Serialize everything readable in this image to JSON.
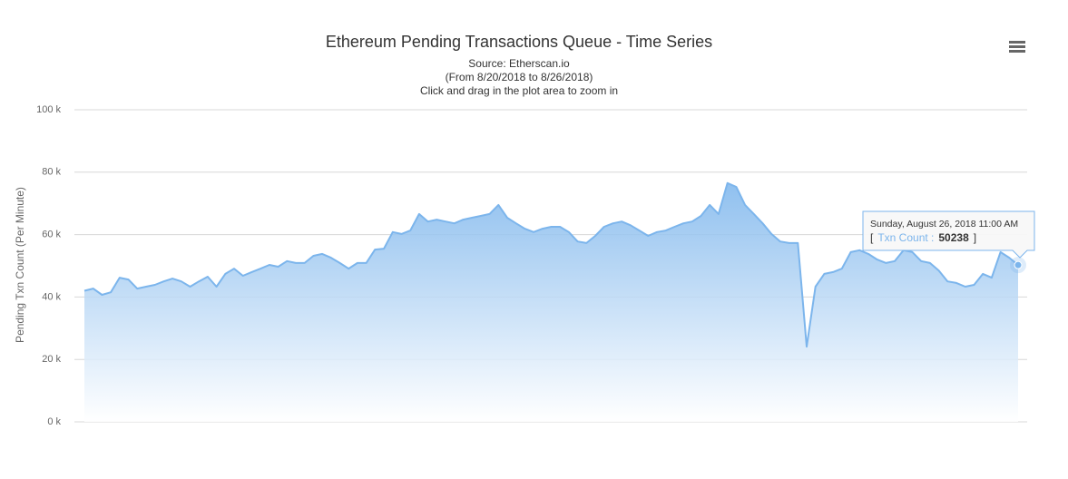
{
  "chart_data": {
    "type": "area",
    "title": "Ethereum Pending Transactions Queue - Time Series",
    "subtitle": [
      "Source: Etherscan.io",
      "(From 8/20/2018 to 8/26/2018)",
      "Click and drag in the plot area to zoom in"
    ],
    "y_label": "Pending Txn Count (Per Minute)",
    "color": "#7cb5ec",
    "grid": true,
    "ylim": [
      0,
      100000
    ],
    "yticks": [
      {
        "value": 0,
        "label": "0 k"
      },
      {
        "value": 20000,
        "label": "20 k"
      },
      {
        "value": 40000,
        "label": "40 k"
      },
      {
        "value": 60000,
        "label": "60 k"
      },
      {
        "value": 80000,
        "label": "80 k"
      },
      {
        "value": 100000,
        "label": "100 k"
      }
    ],
    "values": [
      42000,
      42700,
      40700,
      41500,
      46200,
      45600,
      42700,
      43300,
      43900,
      45000,
      45900,
      45000,
      43300,
      45000,
      46500,
      43300,
      47400,
      49100,
      46800,
      48000,
      49100,
      50300,
      49700,
      51500,
      50900,
      50900,
      53200,
      53800,
      52600,
      50900,
      49100,
      50900,
      50900,
      55200,
      55500,
      60800,
      60200,
      61300,
      66600,
      64200,
      64800,
      64200,
      63600,
      64800,
      65400,
      66000,
      66600,
      69500,
      65400,
      63600,
      61900,
      60800,
      61900,
      62500,
      62500,
      60800,
      57800,
      57300,
      59600,
      62500,
      63600,
      64200,
      63000,
      61300,
      59600,
      60800,
      61300,
      62500,
      63600,
      64200,
      66000,
      69500,
      66600,
      76500,
      75300,
      69500,
      66600,
      63600,
      60200,
      57800,
      57300,
      57300,
      24100,
      43300,
      47400,
      48000,
      49100,
      54400,
      55000,
      53800,
      52000,
      50900,
      51500,
      55000,
      54400,
      51500,
      50900,
      48500,
      45000,
      44500,
      43300,
      43900,
      47400,
      46200,
      54400,
      52600,
      50238
    ],
    "tooltip": {
      "title": "Sunday, August 26, 2018 11:00 AM",
      "open": "[",
      "label": "Txn Count :",
      "value": 50238,
      "close": "]"
    }
  }
}
